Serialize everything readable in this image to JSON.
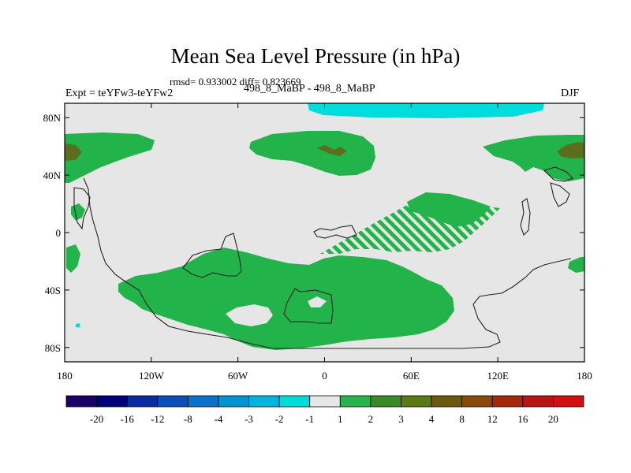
{
  "title": "Mean Sea Level Pressure (in hPa)",
  "stats": "rmsd= 0.933002 diff= 0.823669",
  "experiment": "Expt = teYFw3-teYFw2",
  "comparison": "498_8_MaBP - 498_8_MaBP",
  "season": "DJF",
  "axes": {
    "x_ticks": [
      "180",
      "120W",
      "60W",
      "0",
      "60E",
      "120E",
      "180"
    ],
    "y_ticks": [
      "80N",
      "40N",
      "0",
      "40S",
      "80S"
    ]
  },
  "colorbar": {
    "labels": [
      "-20",
      "-16",
      "-12",
      "-8",
      "-4",
      "-3",
      "-2",
      "-1",
      "1",
      "2",
      "3",
      "4",
      "8",
      "12",
      "16",
      "20"
    ],
    "colors": [
      "#1a0066",
      "#00007a",
      "#0a2aa0",
      "#0a4fb8",
      "#0a72c8",
      "#0094d2",
      "#00b4de",
      "#00dcdc",
      "#e6e6e6",
      "#2ab34a",
      "#3a8a2a",
      "#5a7a14",
      "#6a5a0a",
      "#8a4a0a",
      "#a02a0a",
      "#b81414",
      "#d21010"
    ]
  },
  "map": {
    "background_color": "#e6e6e6",
    "positive_color": "#22b34a",
    "strong_positive_color": "#5a6e1e",
    "negative_color": "#00dcdc",
    "coast_color": "#222222"
  }
}
